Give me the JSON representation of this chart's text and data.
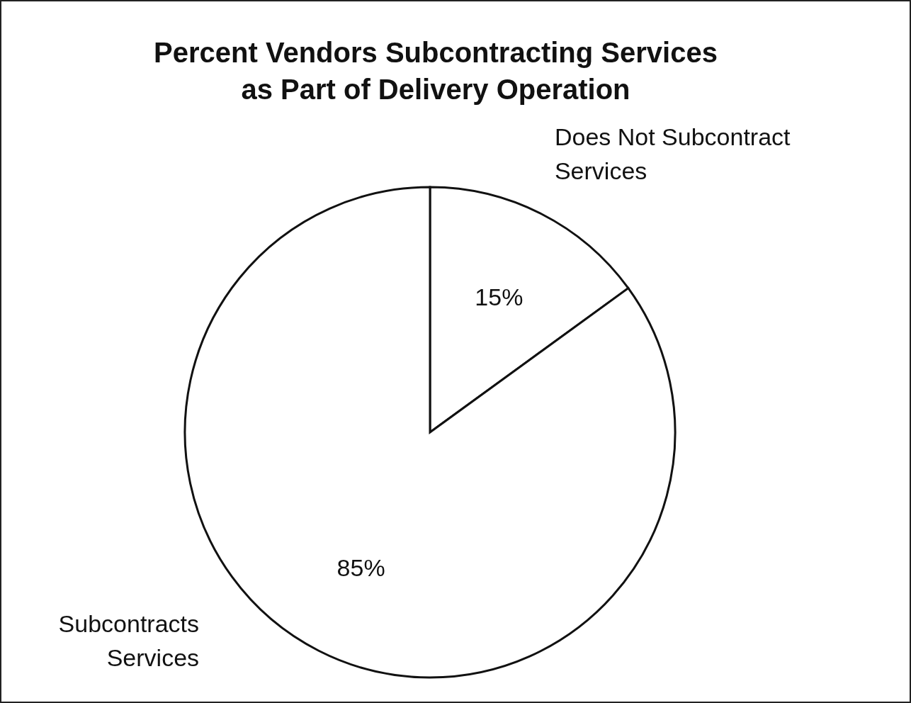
{
  "chart_data": {
    "type": "pie",
    "title": "Percent Vendors Subcontracting Services as Part of Delivery Operation",
    "categories": [
      "Does Not Subcontract Services",
      "Subcontracts Services"
    ],
    "values": [
      15,
      85
    ],
    "colors": [
      "#ffffff",
      "#ffffff"
    ],
    "value_labels": [
      "15%",
      "85%"
    ],
    "legend": false
  }
}
